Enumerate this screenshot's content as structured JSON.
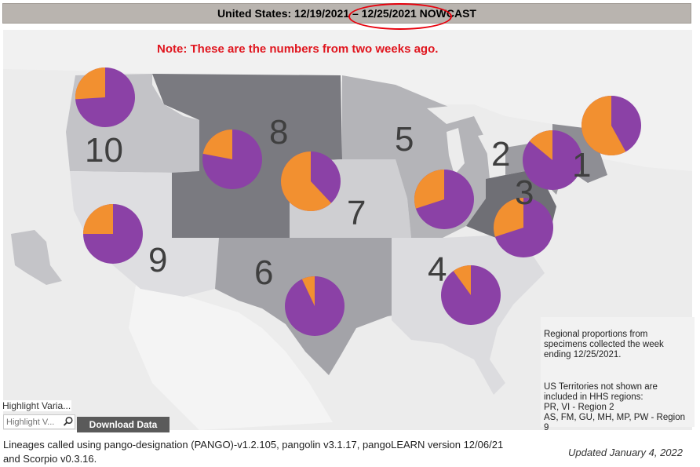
{
  "title": "United States: 12/19/2021 – 12/25/2021 NOWCAST",
  "note": "Note: These are the numbers from two weeks ago.",
  "colors": {
    "purple": "#8b41a6",
    "orange": "#f29030",
    "title_bg": "#b9b4af",
    "note_red": "#e0161f",
    "annotation_circle": "#e8000c"
  },
  "regions": [
    {
      "label": "1",
      "orange_fraction": 0.14
    },
    {
      "label": "2",
      "orange_fraction": 0.1
    },
    {
      "label": "3",
      "orange_fraction": 0.3
    },
    {
      "label": "4",
      "orange_fraction": 0.1
    },
    {
      "label": "5",
      "orange_fraction": 0.3
    },
    {
      "label": "6",
      "orange_fraction": 0.07
    },
    {
      "label": "7",
      "orange_fraction": 0.62
    },
    {
      "label": "8",
      "orange_fraction": 0.22
    },
    {
      "label": "9",
      "orange_fraction": 0.25
    },
    {
      "label": "10",
      "orange_fraction": 0.26
    },
    {
      "label": "",
      "orange_fraction": 0.58
    }
  ],
  "info": {
    "line1": "Regional proportions from specimens collected the week ending 12/25/2021.",
    "line2": "US Territories not shown are included in HHS regions:",
    "line3": "PR, VI - Region 2",
    "line4": "AS, FM, GU, MH, MP, PW - Region 9"
  },
  "controls": {
    "highlight_label": "Highlight Varia...",
    "highlight_placeholder": "Highlight V...",
    "search_icon": "search-icon",
    "download_label": "Download Data"
  },
  "footer": {
    "line1": "Lineages called using pango-designation (PANGO)-v1.2.105, pangolin v3.1.17, pangoLEARN version 12/06/21",
    "line2": "and Scorpio v0.3.16.",
    "updated": "Updated January 4, 2022"
  }
}
